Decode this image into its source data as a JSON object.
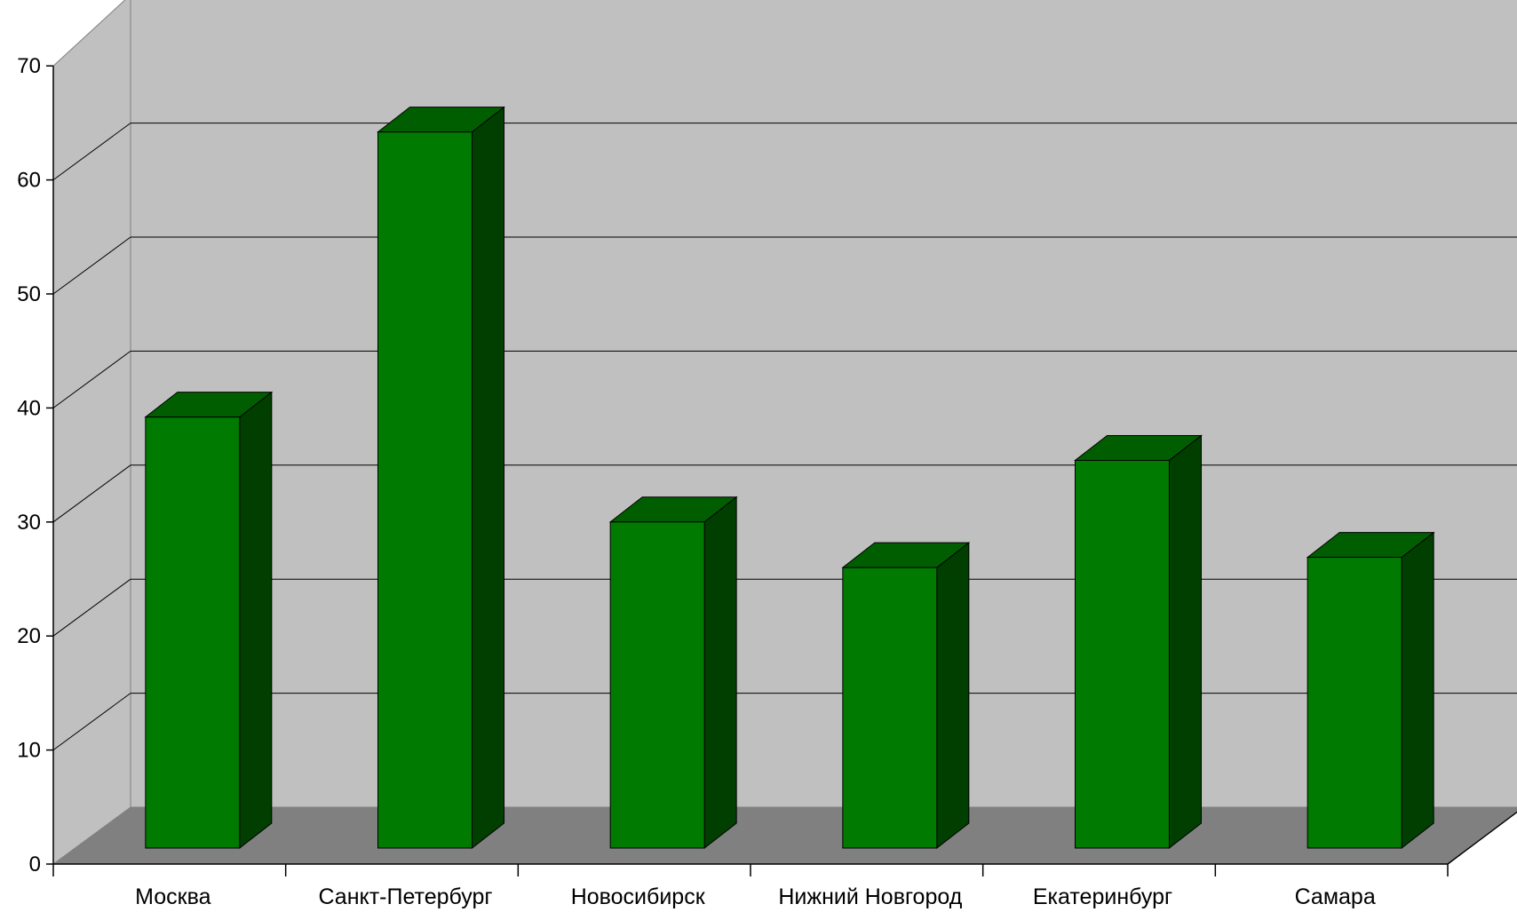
{
  "chart_data": {
    "type": "bar",
    "bar_style": "3d",
    "categories": [
      "Москва",
      "Санкт-Петербург",
      "Новосибирск",
      "Нижний Новгород",
      "Екатеринбург",
      "Самара"
    ],
    "values": [
      38.5,
      63.5,
      29.3,
      25.3,
      34.7,
      26.2
    ],
    "ylim": [
      0,
      70
    ],
    "yticks": [
      "0",
      "10",
      "20",
      "30",
      "40",
      "50",
      "60",
      "70"
    ],
    "grid": true,
    "legend": "none",
    "colors": {
      "bar_front": "#007a00",
      "bar_top": "#005e00",
      "bar_side": "#003f00",
      "back_wall": "#c0c0c0",
      "side_wall": "#c0c0c0",
      "floor": "#808080",
      "grid": "#000000"
    }
  }
}
